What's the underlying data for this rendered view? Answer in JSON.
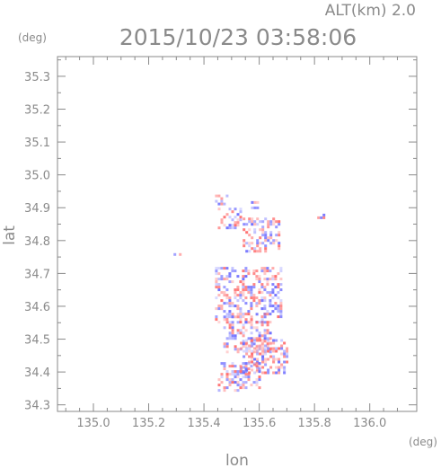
{
  "chart_data": {
    "type": "heatmap",
    "title": "2015/10/23 03:58:06",
    "altitude_label": "ALT(km) 2.0",
    "xlabel": "lon",
    "ylabel": "lat",
    "x_unit": "(deg)",
    "y_unit": "(deg)",
    "xlim": [
      134.87,
      136.17
    ],
    "ylim": [
      34.28,
      35.36
    ],
    "x_ticks": [
      135.0,
      135.2,
      135.4,
      135.6,
      135.8,
      136.0
    ],
    "x_tick_labels": [
      "135.0",
      "135.2",
      "135.4",
      "135.6",
      "135.8",
      "136.0"
    ],
    "y_ticks": [
      34.3,
      34.4,
      34.5,
      34.6,
      34.7,
      34.8,
      34.9,
      35.0,
      35.1,
      35.2,
      35.3
    ],
    "y_tick_labels": [
      "34.3",
      "34.4",
      "34.5",
      "34.6",
      "34.7",
      "34.8",
      "34.9",
      "35.0",
      "35.1",
      "35.2",
      "35.3"
    ],
    "grid": false,
    "colors": {
      "positive": "#ff6f6f",
      "negative": "#6f6fff",
      "axis": "#8a8a8a"
    },
    "echo_regions": [
      {
        "lon": [
          135.44,
          135.48
        ],
        "lat": [
          34.91,
          34.94
        ]
      },
      {
        "lon": [
          135.57,
          135.59
        ],
        "lat": [
          34.9,
          34.92
        ]
      },
      {
        "lon": [
          135.45,
          135.53
        ],
        "lat": [
          34.84,
          34.9
        ]
      },
      {
        "lon": [
          135.54,
          135.67
        ],
        "lat": [
          34.77,
          34.87
        ]
      },
      {
        "lon": [
          135.81,
          135.83
        ],
        "lat": [
          34.87,
          34.89
        ]
      },
      {
        "lon": [
          135.29,
          135.31
        ],
        "lat": [
          34.76,
          34.77
        ]
      },
      {
        "lon": [
          135.44,
          135.68
        ],
        "lat": [
          34.55,
          34.72
        ]
      },
      {
        "lon": [
          135.47,
          135.64
        ],
        "lat": [
          34.46,
          34.58
        ]
      },
      {
        "lon": [
          135.53,
          135.7
        ],
        "lat": [
          34.4,
          34.5
        ]
      },
      {
        "lon": [
          135.45,
          135.6
        ],
        "lat": [
          34.34,
          34.43
        ]
      }
    ]
  }
}
